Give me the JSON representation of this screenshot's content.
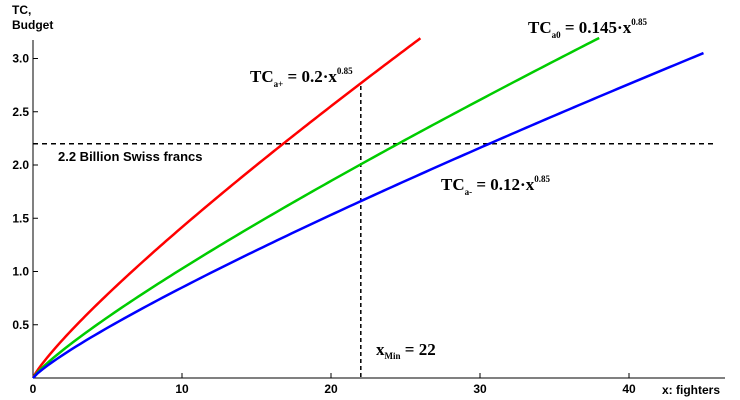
{
  "chart_data": {
    "type": "line",
    "ylabel_line1": "TC,",
    "ylabel_line2": "Budget",
    "xlabel": "x: fighters",
    "xlim": [
      0,
      45
    ],
    "ylim": [
      0,
      3.35
    ],
    "x_ticks": [
      0,
      10,
      20,
      30,
      40
    ],
    "y_ticks": [
      0.5,
      1.0,
      1.5,
      2.0,
      2.5,
      3.0
    ],
    "y_tick_labels": [
      "0.5",
      "1.0",
      "1.5",
      "2.0",
      "2.5",
      "3.0"
    ],
    "grid": false,
    "series": [
      {
        "name": "TC_a+ = 0.2·x^0.85",
        "color": "#ff0000",
        "coef": 0.2,
        "exponent": 0.85,
        "x_range": [
          0,
          26
        ],
        "label": {
          "main": "TC",
          "sub": "a+",
          "rest": " = 0.2·x",
          "sup": "0.85"
        }
      },
      {
        "name": "TC_a0 = 0.145·x^0.85",
        "color": "#00cc00",
        "coef": 0.145,
        "exponent": 0.85,
        "x_range": [
          0,
          38
        ],
        "label": {
          "main": "TC",
          "sub": "a0",
          "rest": " = 0.145·x",
          "sup": "0.85"
        }
      },
      {
        "name": "TC_a- = 0.12·x^0.85",
        "color": "#0000ff",
        "coef": 0.12,
        "exponent": 0.85,
        "x_range": [
          0,
          45
        ],
        "label": {
          "main": "TC",
          "sub": "a-",
          "rest": " = 0.12·x",
          "sup": "0.85"
        }
      }
    ],
    "budget_line": {
      "y": 2.2,
      "label": "2.2 Billion Swiss francs",
      "style": "dashed"
    },
    "min_line": {
      "x": 22,
      "label_main": "x",
      "label_sub": "Min",
      "label_rest": " = 22",
      "style": "dashed"
    }
  }
}
